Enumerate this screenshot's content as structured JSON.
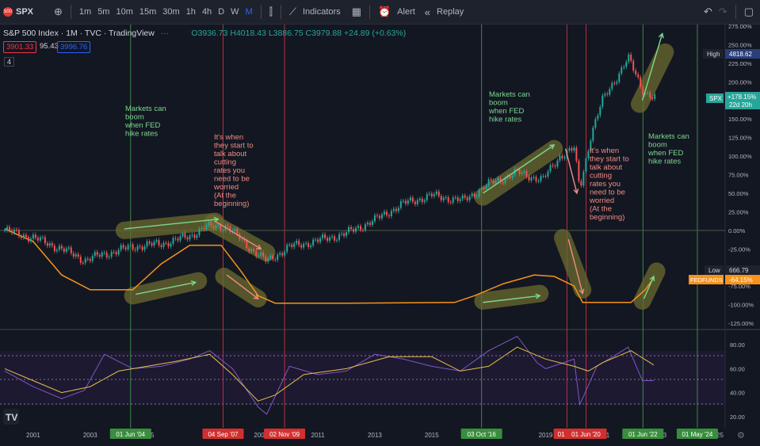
{
  "toolbar": {
    "symbol": "SPX",
    "logo_text": "500",
    "timeframes": [
      "1m",
      "5m",
      "10m",
      "15m",
      "30m",
      "1h",
      "4h",
      "D",
      "W",
      "M"
    ],
    "active_timeframe": "M",
    "indicators_label": "Indicators",
    "alert_label": "Alert",
    "replay_label": "Replay"
  },
  "legend": {
    "title": "S&P 500 Index · 1M · TVC · TradingView",
    "ohlc": "O3936.73 H4018.43 L3886.75 C3979.88 +24.89 (+0.63%)",
    "bid": "3901.33",
    "spread": "95.43",
    "ask": "3996.76",
    "indicator_count": "4"
  },
  "price_labels": {
    "high_label": "High",
    "high_value": "4818.62",
    "low_label": "Low",
    "low_value": "666.79",
    "spx_tag": "SPX",
    "spx_value": "+178.15%",
    "spx_countdown": "22d 20h",
    "fedfunds_tag": "FEDFUNDS",
    "fedfunds_value": "-64.15%"
  },
  "annotations": {
    "boom1": [
      "Markets can",
      "boom",
      "when FED",
      "hike rates"
    ],
    "worry1": [
      "It's when",
      "they start to",
      "talk about",
      "cutting",
      "rates you",
      "need to be",
      "worried",
      "(At the",
      "beginning)"
    ],
    "boom2": [
      "Markets can",
      "boom",
      "when FED",
      "hike rates"
    ],
    "worry2": [
      "It's when",
      "they start to",
      "talk about",
      "cutting",
      "rates you",
      "need to be",
      "worried",
      "(At the",
      "beginning)"
    ],
    "boom3": [
      "Markets can",
      "boom",
      "when FED",
      "hike rates"
    ]
  },
  "colors": {
    "background": "#131722",
    "candle_up": "#26a69a",
    "candle_down": "#ef5350",
    "fedfunds_line": "#f7931a",
    "rsi_line": "#7e57c2",
    "rsi_ma": "#e5c04a",
    "green_vline": "#4caf50",
    "red_vline": "#f23645",
    "boom_text": "#7bd88f",
    "worry_text": "#f28b82",
    "highlight": "#6b6a2e"
  },
  "chart_data": {
    "type": "line",
    "series": [
      {
        "name": "SPX",
        "x": [
          2000.0,
          2001.0,
          2002.0,
          2002.8,
          2003.5,
          2004.5,
          2005.5,
          2006.5,
          2007.0,
          2007.8,
          2008.5,
          2009.2,
          2010.0,
          2011.0,
          2012.0,
          2013.0,
          2014.0,
          2015.0,
          2016.1,
          2017.0,
          2018.0,
          2018.9,
          2019.5,
          2020.0,
          2020.2,
          2020.6,
          2021.0,
          2021.9,
          2022.4,
          2022.8
        ],
        "values": [
          0,
          -10,
          -25,
          -40,
          -32,
          -22,
          -18,
          -8,
          4,
          6,
          -20,
          -42,
          -22,
          -14,
          -4,
          14,
          36,
          47,
          40,
          62,
          78,
          68,
          100,
          110,
          55,
          130,
          175,
          232,
          190,
          178
        ]
      },
      {
        "name": "FEDFUNDS",
        "x": [
          2000.0,
          2001.0,
          2002.0,
          2003.0,
          2004.5,
          2005.5,
          2006.5,
          2007.6,
          2008.3,
          2008.9,
          2009.5,
          2012.0,
          2015.8,
          2016.5,
          2017.5,
          2018.6,
          2019.3,
          2020.0,
          2020.3,
          2021.5,
          2022.0,
          2022.5,
          2022.8
        ],
        "values": [
          2,
          -15,
          -60,
          -80,
          -80,
          -45,
          -20,
          -20,
          -55,
          -88,
          -98,
          -98,
          -97,
          -88,
          -72,
          -60,
          -62,
          -75,
          -97,
          -97,
          -97,
          -80,
          -64
        ]
      },
      {
        "name": "RSI",
        "x": [
          2000.0,
          2001.0,
          2002.0,
          2002.8,
          2003.5,
          2004.5,
          2005.5,
          2006.5,
          2007.2,
          2008.0,
          2008.9,
          2009.2,
          2010.0,
          2011.0,
          2012.0,
          2013.0,
          2014.0,
          2015.0,
          2016.0,
          2017.0,
          2018.0,
          2018.7,
          2019.0,
          2020.0,
          2020.2,
          2020.8,
          2021.5,
          2021.9,
          2022.4,
          2022.8
        ],
        "values": [
          58,
          45,
          35,
          42,
          72,
          60,
          62,
          68,
          75,
          60,
          28,
          22,
          62,
          55,
          58,
          72,
          68,
          62,
          58,
          75,
          87,
          65,
          60,
          68,
          30,
          62,
          72,
          78,
          50,
          50
        ]
      },
      {
        "name": "RSI-MA",
        "x": [
          2000.0,
          2001.0,
          2002.0,
          2003.0,
          2004.0,
          2005.0,
          2006.0,
          2007.2,
          2008.0,
          2008.9,
          2009.5,
          2010.5,
          2012.0,
          2013.5,
          2015.0,
          2016.0,
          2017.0,
          2018.0,
          2019.0,
          2020.0,
          2020.5,
          2021.0,
          2022.0,
          2022.8
        ],
        "values": [
          60,
          50,
          40,
          45,
          58,
          62,
          66,
          72,
          55,
          33,
          38,
          55,
          60,
          70,
          70,
          58,
          62,
          78,
          68,
          62,
          58,
          65,
          75,
          63
        ]
      }
    ],
    "y_ticks": [
      "275.00%",
      "250.00%",
      "225.00%",
      "200.00%",
      "175.00%",
      "150.00%",
      "125.00%",
      "100.00%",
      "75.00%",
      "50.00%",
      "25.00%",
      "0.00%",
      "-25.00%",
      "-50.00%",
      "-75.00%",
      "-100.00%",
      "-125.00%"
    ],
    "y_values": [
      275,
      250,
      225,
      200,
      175,
      150,
      125,
      100,
      75,
      50,
      25,
      0,
      -25,
      -50,
      -75,
      -100,
      -125
    ],
    "ylim": [
      -125,
      275
    ],
    "rsi_ticks": [
      "80.00",
      "60.00",
      "40.00",
      "20.00"
    ],
    "rsi_values": [
      80,
      60,
      40,
      20
    ],
    "rsi_ylim": [
      12,
      90
    ],
    "x_ticks": [
      "2001",
      "2003",
      "2005",
      "2009",
      "2011",
      "2013",
      "2015",
      "2017",
      "2019",
      "2021",
      "2023",
      "2025"
    ],
    "x_tick_values": [
      2001,
      2003,
      2005,
      2009,
      2011,
      2013,
      2015,
      2017,
      2019,
      2021,
      2023,
      2025
    ],
    "xlim": [
      2000,
      2025
    ],
    "event_labels": [
      {
        "text": "01 Jun '04",
        "x": 2004.42,
        "kind": "green"
      },
      {
        "text": "04 Sep '07",
        "x": 2007.67,
        "kind": "red"
      },
      {
        "text": "02 Nov '09",
        "x": 2009.83,
        "kind": "red"
      },
      {
        "text": "03 Oct '16",
        "x": 2016.75,
        "kind": "green"
      },
      {
        "text": "01 Oct",
        "x": 2019.75,
        "kind": "red"
      },
      {
        "text": "01 Jun '20",
        "x": 2020.42,
        "kind": "red"
      },
      {
        "text": "01 Jun '22",
        "x": 2022.42,
        "kind": "green"
      },
      {
        "text": "01 May '24",
        "x": 2024.33,
        "kind": "green"
      }
    ],
    "grid": false
  }
}
